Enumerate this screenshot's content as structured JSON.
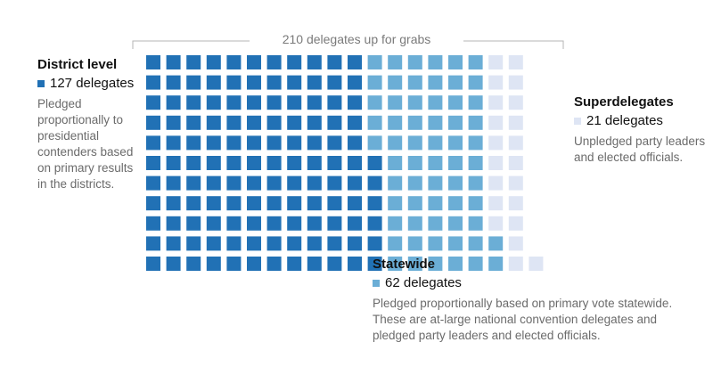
{
  "chart_data": {
    "type": "waffle",
    "title": "210 delegates up for grabs",
    "total": 210,
    "categories": [
      {
        "id": "district",
        "name": "District level",
        "count": 127,
        "count_label": "127 delegates",
        "color": "#2171b5",
        "description": "Pledged proportionally to presidential contenders based on primary results in the districts."
      },
      {
        "id": "statewide",
        "name": "Statewide",
        "count": 62,
        "count_label": "62 delegates",
        "color": "#6baed6",
        "description": "Pledged proportionally based on primary vote statewide. These are at-large national convention delegates and pledged party leaders and elected officials."
      },
      {
        "id": "superdelegates",
        "name": "Superdelegates",
        "count": 21,
        "count_label": "21 delegates",
        "color": "#dee5f4",
        "description": "Unpledged party leaders and elected officials."
      }
    ]
  }
}
